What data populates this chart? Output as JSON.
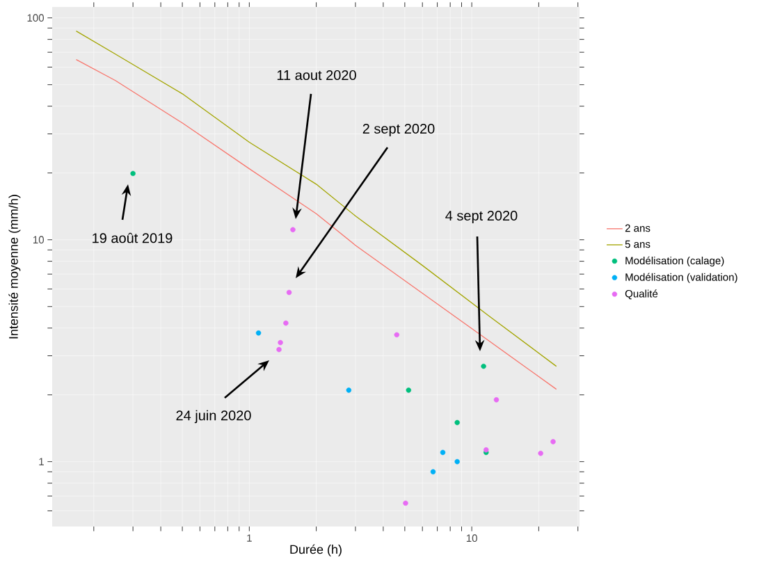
{
  "chart_data": {
    "type": "scatter",
    "xlabel": "Durée (h)",
    "ylabel": "Intensité moyenne (mm/h)",
    "log": "xy",
    "grid": true,
    "legend": "right",
    "xlim": [
      0.13,
      30.5
    ],
    "ylim": [
      0.51,
      112
    ],
    "xticks": [
      {
        "value": 0.2,
        "label": null
      },
      {
        "value": 0.3,
        "label": null
      },
      {
        "value": 0.4,
        "label": null
      },
      {
        "value": 0.5,
        "label": null
      },
      {
        "value": 0.6,
        "label": null
      },
      {
        "value": 0.7,
        "label": null
      },
      {
        "value": 0.8,
        "label": null
      },
      {
        "value": 0.9,
        "label": null
      },
      1,
      {
        "value": 2,
        "label": null
      },
      {
        "value": 3,
        "label": null
      },
      {
        "value": 4,
        "label": null
      },
      {
        "value": 5,
        "label": null
      },
      {
        "value": 6,
        "label": null
      },
      {
        "value": 7,
        "label": null
      },
      {
        "value": 8,
        "label": null
      },
      {
        "value": 9,
        "label": null
      },
      10,
      {
        "value": 20,
        "label": null
      },
      {
        "value": 30,
        "label": null
      }
    ],
    "yticks": [
      {
        "value": 0.6,
        "label": null
      },
      {
        "value": 0.7,
        "label": null
      },
      {
        "value": 0.8,
        "label": null
      },
      {
        "value": 0.9,
        "label": null
      },
      1,
      {
        "value": 2,
        "label": null
      },
      {
        "value": 3,
        "label": null
      },
      {
        "value": 4,
        "label": null
      },
      {
        "value": 5,
        "label": null
      },
      {
        "value": 6,
        "label": null
      },
      {
        "value": 7,
        "label": null
      },
      {
        "value": 8,
        "label": null
      },
      {
        "value": 9,
        "label": null
      },
      10,
      {
        "value": 20,
        "label": null
      },
      {
        "value": 30,
        "label": null
      },
      {
        "value": 40,
        "label": null
      },
      {
        "value": 50,
        "label": null
      },
      {
        "value": 60,
        "label": null
      },
      {
        "value": 70,
        "label": null
      },
      {
        "value": 80,
        "label": null
      },
      {
        "value": 90,
        "label": null
      },
      100
    ],
    "series": [
      {
        "name": "2 ans",
        "type": "line",
        "marker": "none",
        "color": "#f8766d",
        "x": [
          0.1667,
          0.25,
          0.5,
          1,
          2,
          3,
          6,
          12,
          24
        ],
        "values": [
          64.9,
          52.2,
          33.6,
          20.9,
          13.1,
          9.44,
          5.74,
          3.49,
          2.12
        ]
      },
      {
        "name": "5 ans",
        "type": "line",
        "marker": "none",
        "color": "#a3a500",
        "x": [
          0.1667,
          0.25,
          0.5,
          1,
          2,
          3,
          6,
          12,
          24
        ],
        "values": [
          87.2,
          68.7,
          45.5,
          27.5,
          17.8,
          12.8,
          7.66,
          4.52,
          2.69
        ]
      },
      {
        "name": "Modélisation (calage)",
        "marker": "circle",
        "color": "#00bf7d",
        "x": [
          0.3,
          5.2,
          11.3,
          8.6,
          11.6
        ],
        "values": [
          19.9,
          2.1,
          2.69,
          1.5,
          1.1
        ]
      },
      {
        "name": "Modélisation (validation)",
        "marker": "circle",
        "color": "#00b0f6",
        "x": [
          1.1,
          2.8,
          7.41,
          8.6,
          6.7
        ],
        "values": [
          3.8,
          2.1,
          1.1,
          1.0,
          0.9
        ]
      },
      {
        "name": "Qualité",
        "marker": "circle",
        "color": "#e76bf3",
        "x": [
          1.57,
          1.51,
          1.46,
          1.38,
          1.36,
          4.6,
          5.04,
          12.9,
          11.6,
          20.4,
          23.2
        ],
        "values": [
          11.1,
          5.79,
          4.21,
          3.44,
          3.2,
          3.73,
          0.65,
          1.9,
          1.13,
          1.09,
          1.23
        ]
      }
    ],
    "annotations": [
      "11 aout 2020",
      "2 sept 2020",
      "19 août 2019",
      "4 sept 2020",
      "24 juin 2020"
    ]
  }
}
